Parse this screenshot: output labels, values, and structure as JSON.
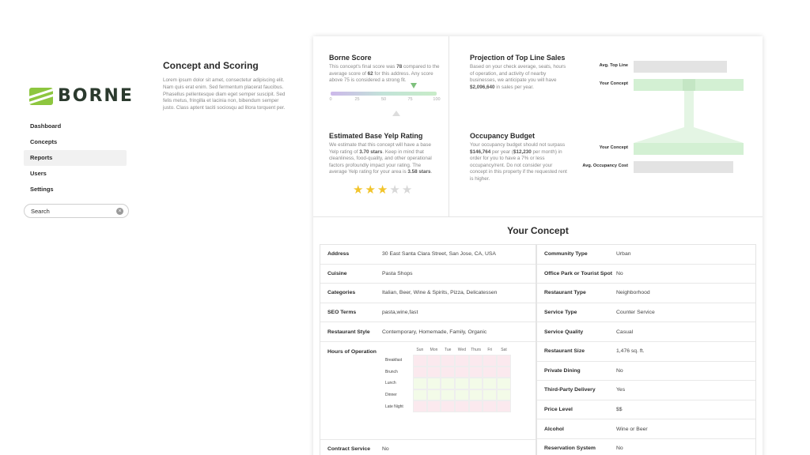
{
  "brand": {
    "name": "BORNE",
    "logo_color": "#8dc63f"
  },
  "nav": {
    "items": [
      {
        "label": "Dashboard",
        "active": false
      },
      {
        "label": "Concepts",
        "active": false
      },
      {
        "label": "Reports",
        "active": true
      },
      {
        "label": "Users",
        "active": false
      },
      {
        "label": "Settings",
        "active": false
      }
    ]
  },
  "search": {
    "value": "",
    "placeholder": "Search"
  },
  "intro": {
    "title": "Concept and Scoring",
    "body": "Lorem ipsum dolor sit amet, consectetur adipiscing elit. Nam quis erat enim. Sed fermentum placerat faucibus. Phasellus pellentesque diam eget semper suscipit. Sed felis metus, fringilla et lacinia non, bibendum semper justo. Class aptent taciti sociosqu ad litora torquent per."
  },
  "score": {
    "title": "Borne Score",
    "text_a": "This concept's final score was ",
    "final": "78",
    "text_b": " compared to the average score of ",
    "average": "62",
    "text_c": " for this address. Any score above 75 is considered a strong fit.",
    "ticks": [
      "0",
      "25",
      "50",
      "75",
      "100"
    ],
    "final_value": 78,
    "average_value": 62
  },
  "yelp": {
    "title": "Estimated Base Yelp Rating",
    "text_a": "We estimate that this concept will have a base Yelp rating of ",
    "rating": "3.70 stars",
    "text_b": ". Keep in mind that cleanliness, food-quality, and other operational factors profoundly impact your rating. The average Yelp rating for your area is ",
    "area_rating": "3.58 stars",
    "text_c": ".",
    "stars_filled": 3,
    "stars_total": 5
  },
  "projection": {
    "title": "Projection of Top Line Sales",
    "text_a": "Based on your check average, seats, hours of operation, and activity of nearby businesses, we anticipate you will have ",
    "amount": "$2,096,640",
    "text_b": " in sales per year.",
    "bar_labels": [
      "Avg. Top Line",
      "Your Concept"
    ]
  },
  "occupancy": {
    "title": "Occupancy Budget",
    "text_a": "Your occupancy budget should not surpass ",
    "yearly": "$146,764",
    "text_b": " per year (",
    "monthly": "$12,230",
    "text_c": " per month) in order for you to have a 7% or less occupancy/rent. Do not consider your concept in this property if the requested rent is higher.",
    "bar_labels": [
      "Your Concept",
      "Avg. Occupancy Cost"
    ]
  },
  "concept": {
    "title": "Your Concept",
    "left": [
      {
        "key": "Address",
        "value": "30 East Santa Clara Street, San Jose, CA, USA"
      },
      {
        "key": "Cuisine",
        "value": "Pasta Shops"
      },
      {
        "key": "Categories",
        "value": "Italian, Beer, Wine & Spirits, Pizza, Delicatessen"
      },
      {
        "key": "SEO Terms",
        "value": "pasta,wine,fast"
      },
      {
        "key": "Restaurant Style",
        "value": "Contemporary, Homemade, Family, Organic"
      }
    ],
    "hours": {
      "label": "Hours of Operation",
      "days": [
        "Sun",
        "Mon",
        "Tue",
        "Wed",
        "Thurs",
        "Fri",
        "Sat"
      ],
      "meals": [
        "Breakfast",
        "Brunch",
        "Lunch",
        "Dinner",
        "Late Night"
      ]
    },
    "left_bottom": {
      "key": "Contract Service",
      "value": "No"
    },
    "right": [
      {
        "key": "Community Type",
        "value": "Urban"
      },
      {
        "key": "Office Park or Tourist Spot",
        "value": "No"
      },
      {
        "key": "Restaurant Type",
        "value": "Neighborhood"
      },
      {
        "key": "Service Type",
        "value": "Counter Service"
      },
      {
        "key": "Service Quality",
        "value": "Casual"
      },
      {
        "key": "Restaurant Size",
        "value": "1,476 sq. ft."
      },
      {
        "key": "Private Dining",
        "value": "No"
      },
      {
        "key": "Third-Party Delivery",
        "value": "Yes"
      },
      {
        "key": "Price Level",
        "value": "$$"
      },
      {
        "key": "Alcohol",
        "value": "Wine or Beer"
      },
      {
        "key": "Reservation System",
        "value": "No"
      }
    ]
  }
}
